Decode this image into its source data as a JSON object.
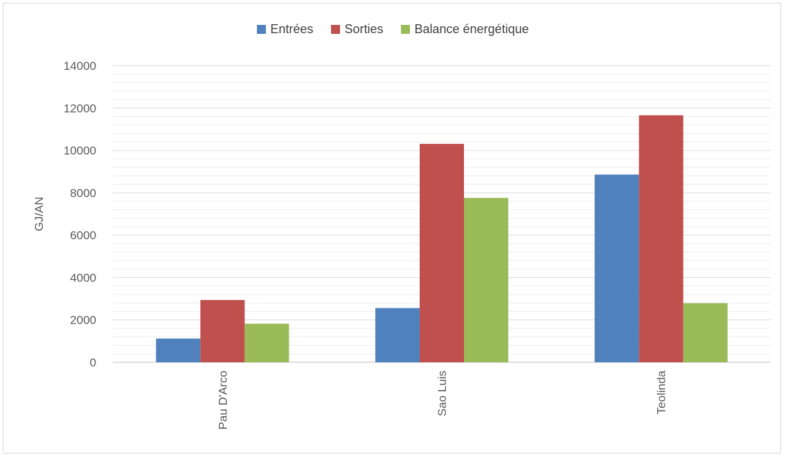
{
  "chart_data": {
    "type": "bar",
    "title": "",
    "xlabel": "",
    "ylabel": "GJ/AN",
    "categories": [
      "Pau D'Arco",
      "Sao Luis",
      "Teolinda"
    ],
    "series": [
      {
        "name": "Entrées",
        "color": "#4f81bd",
        "values": [
          1120,
          2560,
          8860
        ]
      },
      {
        "name": "Sorties",
        "color": "#c0504d",
        "values": [
          2940,
          10310,
          11660
        ]
      },
      {
        "name": "Balance énergétique",
        "color": "#9bbb59",
        "values": [
          1820,
          7760,
          2790
        ]
      }
    ],
    "ylim": [
      0,
      14000
    ],
    "yticks": [
      0,
      2000,
      4000,
      6000,
      8000,
      10000,
      12000,
      14000
    ],
    "yticks_labels": [
      "0",
      "2000",
      "4000",
      "6000",
      "8000",
      "10000",
      "12000",
      "14000"
    ],
    "grid": true,
    "minor_grid": true,
    "legend_position": "top-center"
  }
}
